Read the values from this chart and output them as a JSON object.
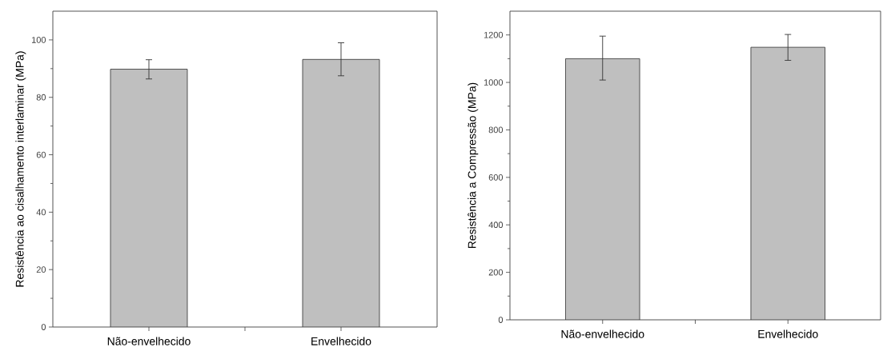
{
  "chart_data": [
    {
      "type": "bar",
      "ylabel": "Resistência ao cisalhamento interlaminar (MPa)",
      "categories": [
        "Não-envelhecido",
        "Envelhecido"
      ],
      "values": [
        89.8,
        93.2
      ],
      "errors": [
        [
          86.4,
          93.1
        ],
        [
          87.5,
          99.0
        ]
      ],
      "color": "#bfbfbf",
      "ylim": [
        0,
        110
      ],
      "yticks": [
        0,
        20,
        40,
        60,
        80,
        100
      ]
    },
    {
      "type": "bar",
      "ylabel": "Resistência a Compressão (MPa)",
      "categories": [
        "Não-envelhecido",
        "Envelhecido"
      ],
      "values": [
        1100,
        1148
      ],
      "errors": [
        [
          1010,
          1195
        ],
        [
          1093,
          1202
        ]
      ],
      "color": "#bfbfbf",
      "ylim": [
        0,
        1300
      ],
      "yticks": [
        0,
        200,
        400,
        600,
        800,
        1000,
        1200
      ]
    }
  ]
}
